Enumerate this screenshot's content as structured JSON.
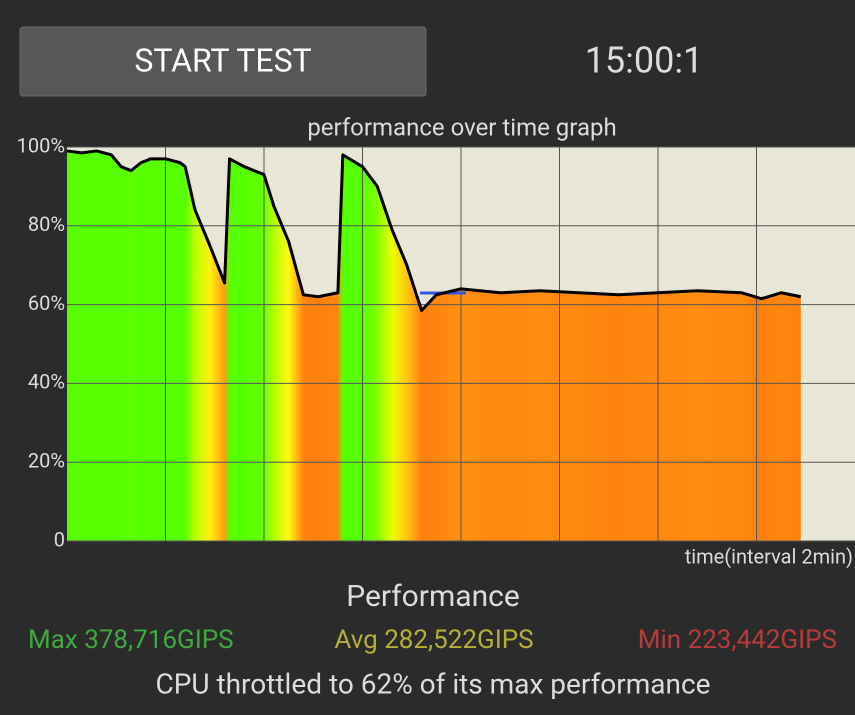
{
  "controls": {
    "button": "START TEST",
    "timer": "15:00:1"
  },
  "chart_data": {
    "type": "line",
    "title": "performance over time graph",
    "xlabel": "time(interval 2min)",
    "x": [
      0,
      0.3,
      0.6,
      0.9,
      1.1,
      1.3,
      1.5,
      1.7,
      2.0,
      2.3,
      2.4,
      2.6,
      2.9,
      3.2,
      3.3,
      3.6,
      4.0,
      4.2,
      4.5,
      4.8,
      5.1,
      5.5,
      5.6,
      6.0,
      6.3,
      6.6,
      6.9,
      7.2,
      7.5,
      8.0,
      8.8,
      9.6,
      10.4,
      11.2,
      12.0,
      12.8,
      13.7,
      14.1,
      14.5,
      14.9
    ],
    "series": [
      {
        "color": "#000000",
        "values": [
          99,
          98.5,
          99,
          98,
          95,
          94,
          96,
          97,
          97,
          96,
          95,
          84,
          75,
          65.5,
          97,
          95,
          93,
          85,
          76,
          62.5,
          62,
          63,
          98,
          95,
          90,
          79,
          70,
          58.5,
          62.5,
          64,
          63,
          63.5,
          63,
          62.5,
          63,
          63.5,
          63,
          61.5,
          63,
          62
        ]
      }
    ],
    "xlim": [
      0,
      16
    ],
    "xgrid": [
      2,
      4,
      6,
      8,
      10,
      12,
      14
    ],
    "ylim": [
      0,
      100
    ],
    "yticks": [
      0,
      {
        "value": 20,
        "label": "20%"
      },
      {
        "value": 40,
        "label": "40%"
      },
      {
        "value": 60,
        "label": "60%"
      },
      {
        "value": 80,
        "label": "80%"
      },
      {
        "value": 100,
        "label": "100%"
      }
    ],
    "grid": true
  },
  "summary": {
    "heading": "Performance",
    "max": "Max 378,716GIPS",
    "avg": "Avg 282,522GIPS",
    "min": "Min 223,442GIPS",
    "note": "CPU throttled to 62% of its max performance"
  }
}
